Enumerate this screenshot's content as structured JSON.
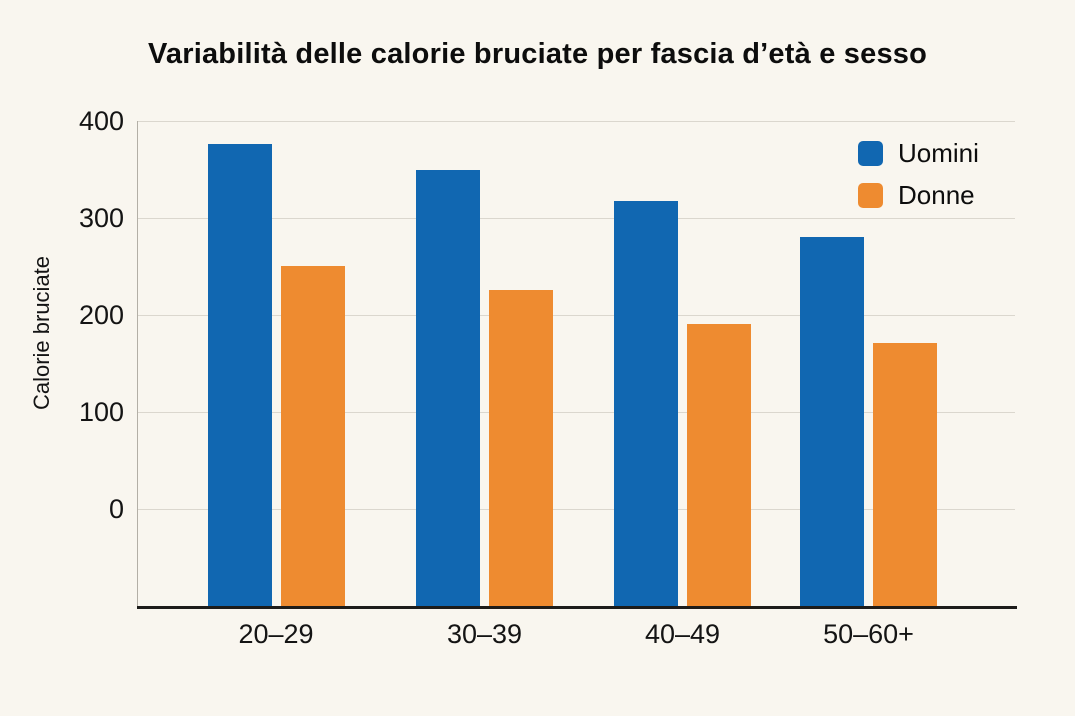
{
  "chart_data": {
    "type": "bar",
    "title": "Variabilità delle calorie bruciate per fascia d’età e sesso",
    "xlabel": "",
    "ylabel": "Calorie bruciate",
    "categories": [
      "20–29",
      "30–39",
      "40–49",
      "50–60+"
    ],
    "series": [
      {
        "name": "Uomini",
        "color": "#1167b1",
        "values": [
          376,
          349,
          318,
          280
        ]
      },
      {
        "name": "Donne",
        "color": "#ee8b30",
        "values": [
          251,
          226,
          191,
          171
        ]
      }
    ],
    "yticks": [
      0,
      100,
      200,
      300,
      400
    ],
    "ylim": [
      0,
      400
    ],
    "grid": true,
    "legend_position": "top-right",
    "note_baseline": "bars are drawn from the plot bottom, below the 0 gridline",
    "colors": {
      "background": "#f9f6ef",
      "gridline": "#dbd7ce",
      "axis_line": "#1d1c1a",
      "text": "#141414"
    }
  }
}
